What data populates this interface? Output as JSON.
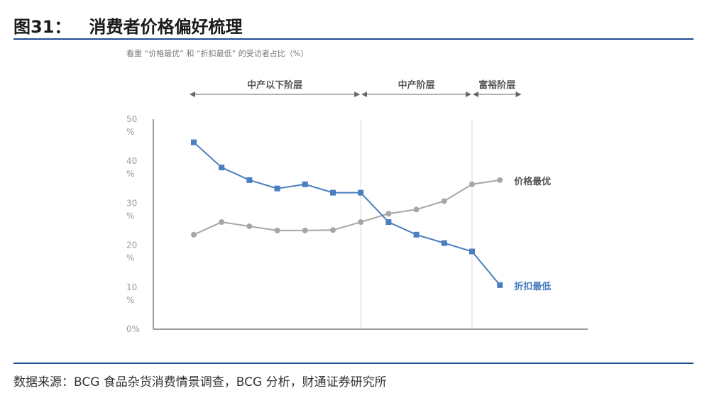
{
  "figure": {
    "title": "图31：   消费者价格偏好梳理",
    "source": "数据来源：BCG 食品杂货消费情景调查，BCG 分析，财通证券研究所"
  },
  "chart_data": {
    "type": "line",
    "subtitle": "看重 “价格最优” 和 “折扣最低” 的受访者占比（%）",
    "segments": [
      {
        "label": "中产以下阶层",
        "from": 0,
        "to": 6
      },
      {
        "label": "中产阶层",
        "from": 6,
        "to": 10
      },
      {
        "label": "富裕阶层",
        "from": 10,
        "to": 11.8
      }
    ],
    "dividers": [
      6,
      10
    ],
    "ylim": [
      0,
      50
    ],
    "y_ticks": [
      {
        "value": 50,
        "label": "50",
        "unit": "%"
      },
      {
        "value": 40,
        "label": "40",
        "unit": "%"
      },
      {
        "value": 30,
        "label": "30",
        "unit": "%"
      },
      {
        "value": 20,
        "label": "20",
        "unit": "%"
      },
      {
        "value": 10,
        "label": "10",
        "unit": "%"
      },
      {
        "value": 0,
        "label": "0%",
        "unit": ""
      }
    ],
    "series": [
      {
        "name": "价格最优",
        "color": "#a6a6a6",
        "marker": "circle",
        "values": [
          22.5,
          25.5,
          24.5,
          23.5,
          23.5,
          23.6,
          25.5,
          27.5,
          28.5,
          30.5,
          34.5,
          35.5
        ]
      },
      {
        "name": "折扣最低",
        "color": "#4a7ebf",
        "marker": "square",
        "values": [
          44.5,
          38.5,
          35.5,
          33.5,
          34.5,
          32.5,
          32.5,
          25.5,
          22.5,
          20.5,
          18.5,
          10.5
        ]
      }
    ]
  }
}
